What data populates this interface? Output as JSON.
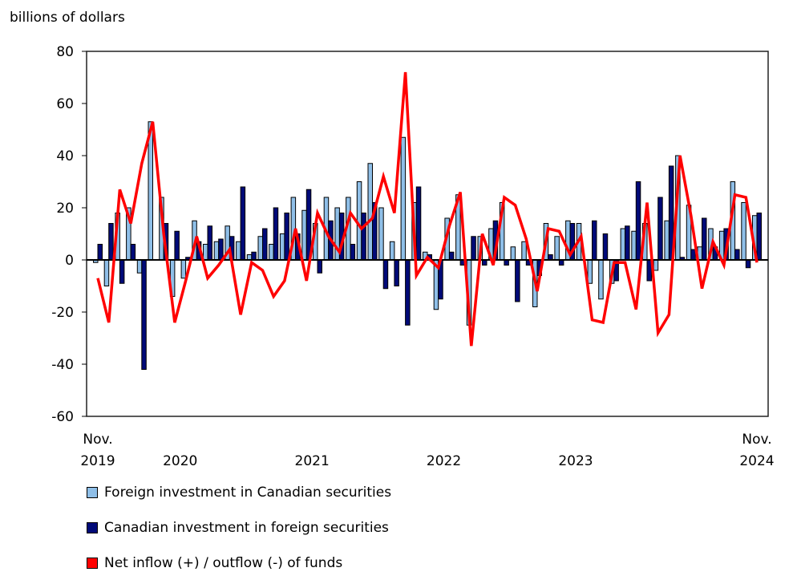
{
  "chart_data": {
    "type": "bar+line",
    "ylabel": "billions of dollars",
    "ylim": [
      -60,
      80
    ],
    "yticks": [
      -60,
      -40,
      -20,
      0,
      20,
      40,
      60,
      80
    ],
    "grid": false,
    "legend_placement": "bottom",
    "x_start": "2019-11",
    "x_end": "2024-11",
    "xtick_labels": [
      {
        "month": "2019-11",
        "lines": [
          "Nov.",
          "2019"
        ]
      },
      {
        "month": "2020",
        "lines": [
          "",
          "2020"
        ]
      },
      {
        "month": "2021",
        "lines": [
          "",
          "2021"
        ]
      },
      {
        "month": "2022",
        "lines": [
          "",
          "2022"
        ]
      },
      {
        "month": "2023",
        "lines": [
          "",
          "2023"
        ]
      },
      {
        "month": "2024-11",
        "lines": [
          "Nov.",
          "2024"
        ]
      }
    ],
    "series": [
      {
        "name": "Foreign investment in Canadian securities",
        "kind": "bar",
        "color": "#8fbfe8",
        "values": [
          -1,
          -10,
          18,
          20,
          -5,
          53,
          24,
          -14,
          -7,
          15,
          6,
          7,
          13,
          7,
          2,
          9,
          6,
          10,
          24,
          19,
          14,
          24,
          20,
          24,
          30,
          37,
          20,
          7,
          47,
          22,
          3,
          -19,
          16,
          25,
          -25,
          9,
          12,
          22,
          5,
          7,
          -18,
          14,
          9,
          15,
          14,
          -9,
          -15,
          -9,
          12,
          11,
          14,
          -4,
          15,
          40,
          21,
          5,
          12,
          11,
          30,
          22,
          17
        ]
      },
      {
        "name": "Canadian investment in foreign securities",
        "kind": "bar",
        "color": "#000a78",
        "values": [
          6,
          14,
          -9,
          6,
          -42,
          0,
          14,
          11,
          1,
          7,
          13,
          8,
          9,
          28,
          3,
          12,
          20,
          18,
          10,
          27,
          -5,
          15,
          18,
          6,
          18,
          22,
          -11,
          -10,
          -25,
          28,
          2,
          -15,
          3,
          -2,
          9,
          -2,
          15,
          -2,
          -16,
          -2,
          -6,
          2,
          -2,
          14,
          0,
          15,
          10,
          -8,
          13,
          30,
          -8,
          24,
          36,
          1,
          4,
          16,
          5,
          12,
          4,
          -3,
          18
        ]
      },
      {
        "name": "Net inflow (+) / outflow (-) of funds",
        "kind": "line",
        "color": "#ff0000",
        "values": [
          -7,
          -24,
          27,
          14,
          37,
          53,
          10,
          -24,
          -8,
          9,
          -7,
          -2,
          4,
          -21,
          -1,
          -4,
          -14,
          -8,
          12,
          -8,
          18,
          9,
          3,
          18,
          12,
          16,
          32,
          18,
          72,
          -6,
          1,
          -3,
          13,
          26,
          -33,
          10,
          -2,
          24,
          21,
          8,
          -12,
          12,
          11,
          2,
          9,
          -23,
          -24,
          -1,
          -1,
          -19,
          22,
          -28,
          -21,
          40,
          17,
          -11,
          7,
          -2,
          25,
          24,
          -1
        ]
      }
    ]
  }
}
